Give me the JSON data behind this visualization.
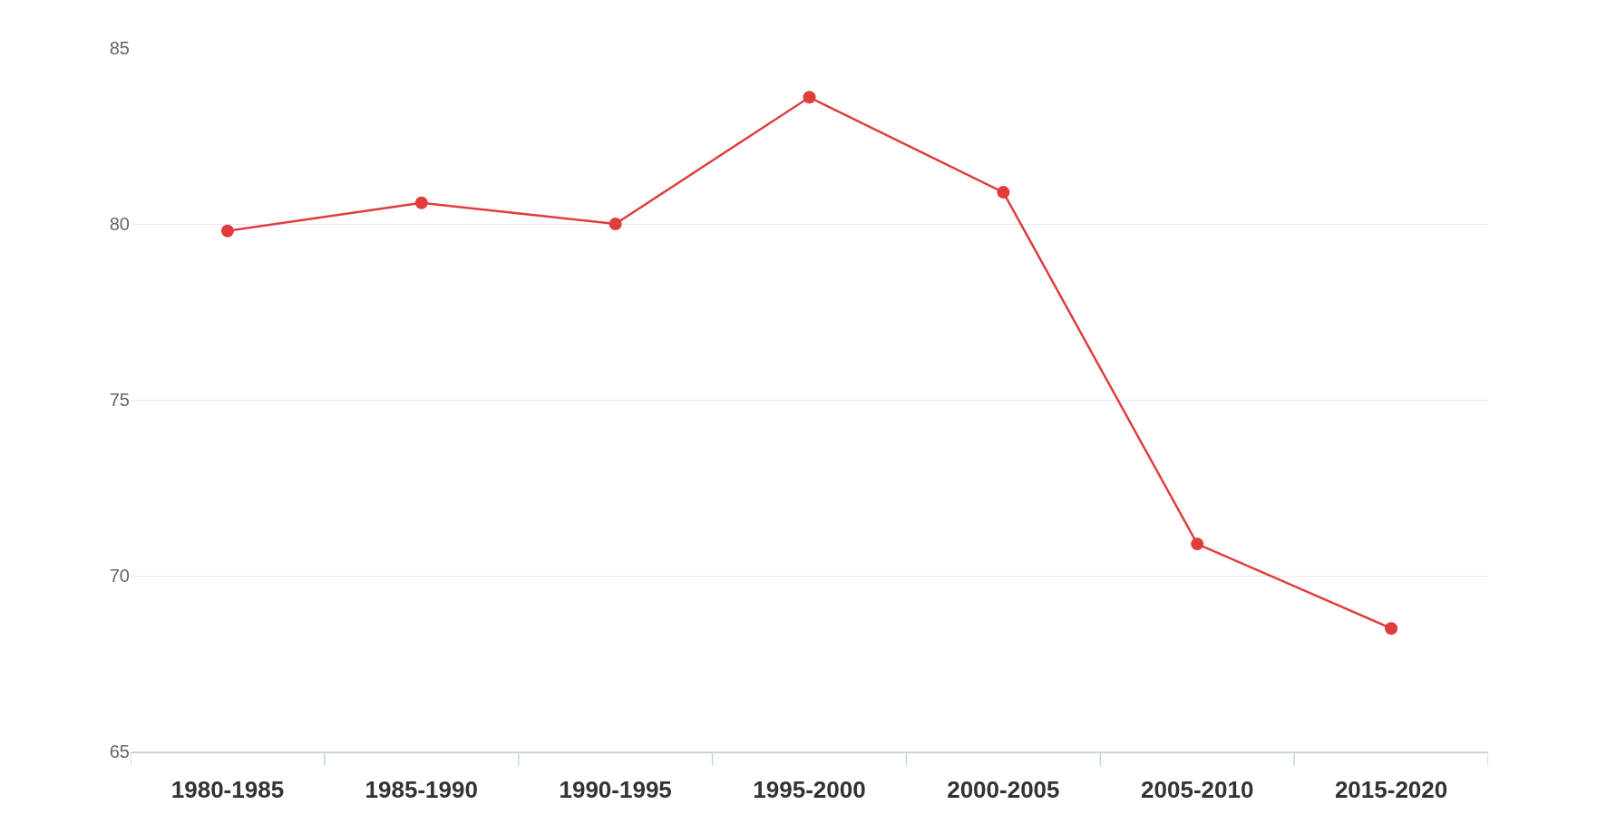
{
  "chart_data": {
    "type": "line",
    "categories": [
      "1980-1985",
      "1985-1990",
      "1990-1995",
      "1995-2000",
      "2000-2005",
      "2005-2010",
      "2015-2020"
    ],
    "series": [
      {
        "color": "#e03c3c",
        "values": [
          79.8,
          80.6,
          80.0,
          83.6,
          80.9,
          70.9,
          68.5
        ]
      }
    ],
    "ylim": [
      65,
      85
    ],
    "yticks": [
      65,
      70,
      75,
      80,
      85
    ],
    "grid": "y",
    "marker": "circle",
    "line_style": "solid"
  }
}
